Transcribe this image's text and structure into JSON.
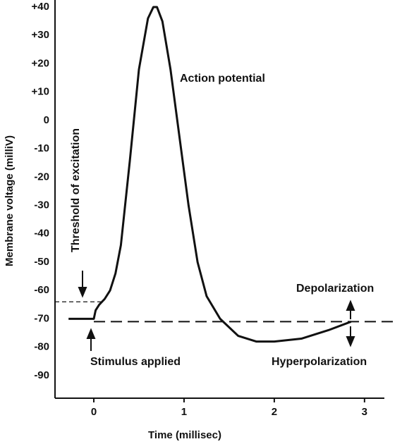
{
  "chart_data": {
    "type": "line",
    "x_label": "Time (millisec)",
    "y_label": "Membrane voltage (milliV)",
    "xlim": [
      -0.43,
      3.22
    ],
    "ylim": [
      -98,
      42.5
    ],
    "xticks": [
      0,
      1,
      2,
      3
    ],
    "yticks": [
      {
        "value": 40,
        "label": "+40"
      },
      {
        "value": 30,
        "label": "+30"
      },
      {
        "value": 20,
        "label": "+20"
      },
      {
        "value": 10,
        "label": "+10"
      },
      0,
      -10,
      -20,
      -30,
      -40,
      -50,
      -60,
      -70,
      -80,
      -90
    ],
    "hlines": [
      -64,
      -71
    ],
    "color": "#111111",
    "x": [
      -0.28,
      0,
      0.02,
      0.06,
      0.12,
      0.18,
      0.24,
      0.3,
      0.4,
      0.5,
      0.6,
      0.66,
      0.7,
      0.76,
      0.85,
      0.95,
      1.05,
      1.15,
      1.25,
      1.4,
      1.6,
      1.8,
      2.0,
      2.3,
      2.6,
      2.85
    ],
    "values": [
      -70,
      -70,
      -67,
      -65,
      -63,
      -60,
      -54,
      -44,
      -14,
      18,
      36,
      40,
      40,
      35,
      18,
      -6,
      -30,
      -50,
      -62,
      -70,
      -76,
      -78,
      -78,
      -77,
      -74,
      -71
    ],
    "annotations": [
      "Action potential",
      "Threshold of excitation",
      "Depolarization",
      "Stimulus applied",
      "Hyperpolarization"
    ]
  }
}
